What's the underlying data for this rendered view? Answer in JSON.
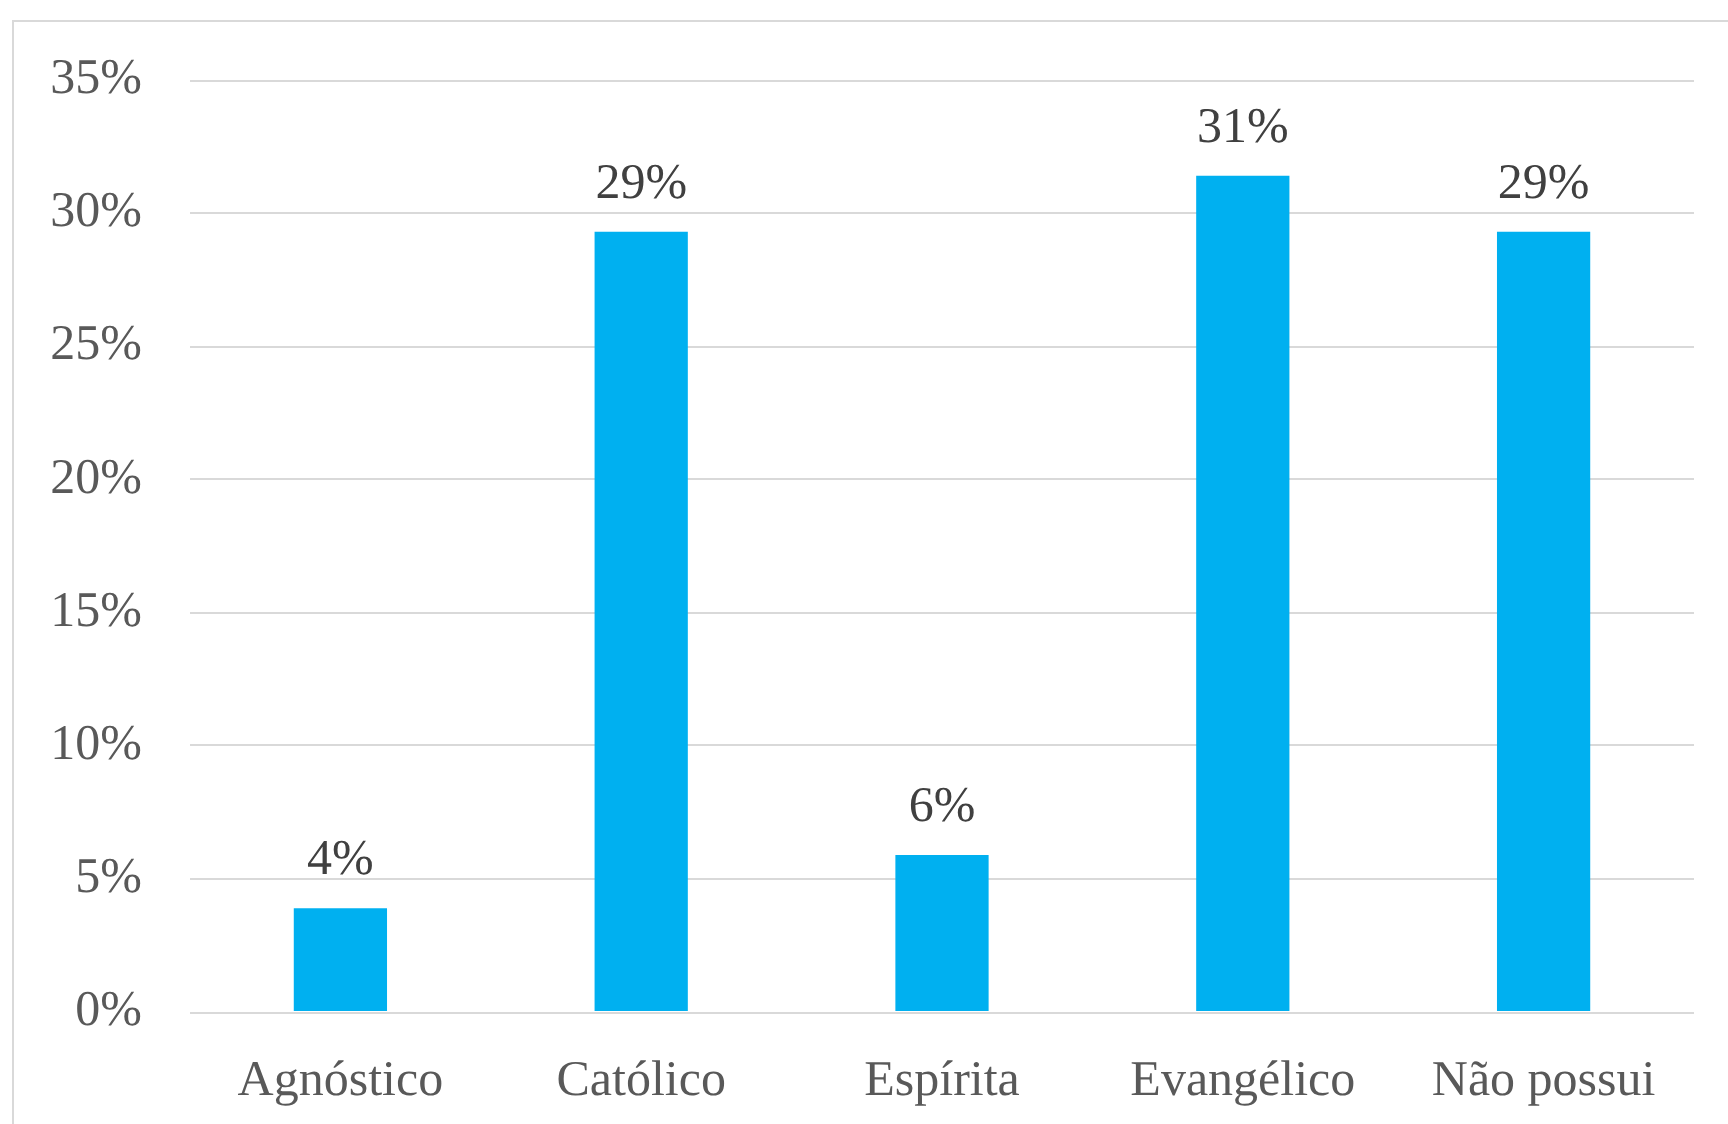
{
  "chart_data": {
    "type": "bar",
    "categories": [
      "Agnóstico",
      "Católico",
      "Espírita",
      "Evangélico",
      "Não possui"
    ],
    "values": [
      3.9,
      29.3,
      5.9,
      31.4,
      29.3
    ],
    "value_labels": [
      "4%",
      "29%",
      "6%",
      "31%",
      "29%"
    ],
    "color": "#00b0f0",
    "ylim": [
      0,
      35
    ],
    "yticks": [
      {
        "value": 0,
        "label": "0%"
      },
      {
        "value": 5,
        "label": "5%"
      },
      {
        "value": 10,
        "label": "10%"
      },
      {
        "value": 15,
        "label": "15%"
      },
      {
        "value": 20,
        "label": "20%"
      },
      {
        "value": 25,
        "label": "25%"
      },
      {
        "value": 30,
        "label": "30%"
      },
      {
        "value": 35,
        "label": "35%"
      }
    ],
    "grid": "y"
  }
}
